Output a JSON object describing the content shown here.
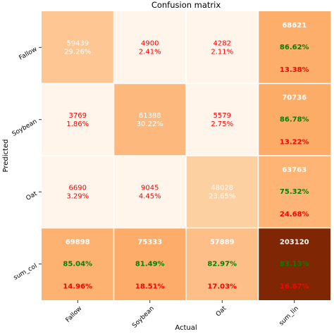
{
  "chart_data": {
    "type": "heatmap",
    "title": "Confusion matrix",
    "xlabel": "Actual",
    "ylabel": "Predicted",
    "x_categories": [
      "Fallow",
      "Soybean",
      "Oat",
      "sum_lin"
    ],
    "y_categories": [
      "Fallow",
      "Soybean",
      "Oat",
      "sum_col"
    ],
    "colormap": "Oranges",
    "colors": {
      "value_text_dark": "#ff0000",
      "value_text_light": "#ffffff",
      "pct_good": "#008000",
      "pct_bad": "#ff0000",
      "grid": "#ffffff"
    },
    "matrix": [
      [
        59439,
        4900,
        4282
      ],
      [
        3769,
        61388,
        5579
      ],
      [
        6690,
        9045,
        48028
      ]
    ],
    "matrix_pct": [
      [
        "29.26%",
        "2.41%",
        "2.11%"
      ],
      [
        "1.86%",
        "30.22%",
        "2.75%"
      ],
      [
        "3.29%",
        "4.45%",
        "23.65%"
      ]
    ],
    "row_sums": [
      {
        "total": "68621",
        "good": "86.62%",
        "bad": "13.38%"
      },
      {
        "total": "70736",
        "good": "86.78%",
        "bad": "13.22%"
      },
      {
        "total": "63763",
        "good": "75.32%",
        "bad": "24.68%"
      }
    ],
    "col_sums": [
      {
        "total": "69898",
        "good": "85.04%",
        "bad": "14.96%"
      },
      {
        "total": "75333",
        "good": "81.49%",
        "bad": "18.51%"
      },
      {
        "total": "57889",
        "good": "82.97%",
        "bad": "17.03%"
      }
    ],
    "grand_total": {
      "total": "203120",
      "good": "83.13%",
      "bad": "16.87%"
    },
    "cell_colors": [
      [
        "#fdc692",
        "#fff5eb",
        "#fff5eb",
        "#fdae6b"
      ],
      [
        "#fff5eb",
        "#fdb97d",
        "#fff5eb",
        "#fdac68"
      ],
      [
        "#fff5eb",
        "#fff5eb",
        "#fdd0a2",
        "#fdb475"
      ],
      [
        "#fdb272",
        "#fdad69",
        "#fdbf87",
        "#7f2704"
      ]
    ]
  }
}
